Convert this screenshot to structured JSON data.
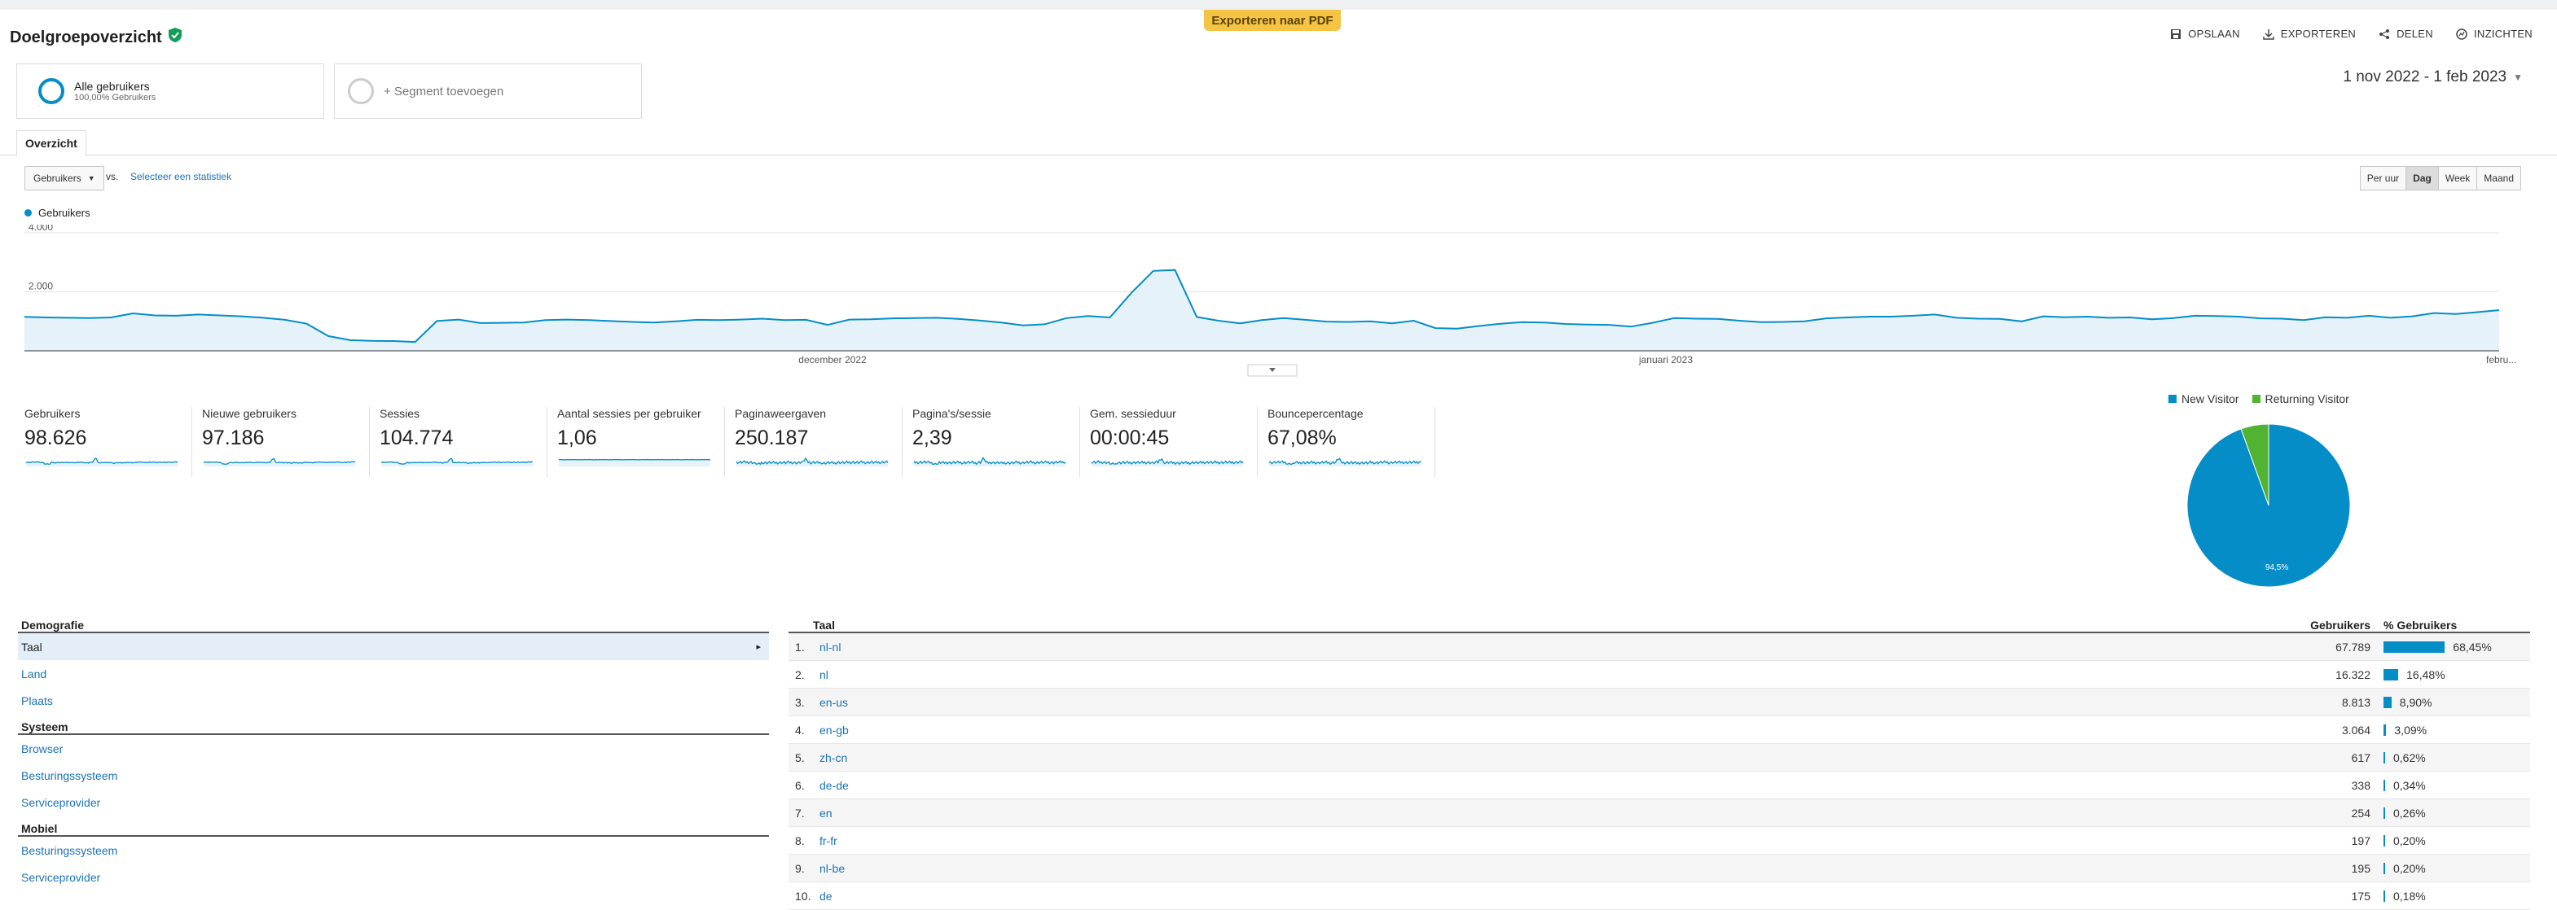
{
  "header": {
    "pdf_label": "Exporteren naar PDF",
    "title": "Doelgroepoverzicht",
    "actions": [
      {
        "icon": "save-icon",
        "label": "OPSLAAN"
      },
      {
        "icon": "download-icon",
        "label": "EXPORTEREN"
      },
      {
        "icon": "share-icon",
        "label": "DELEN"
      },
      {
        "icon": "insights-icon",
        "label": "INZICHTEN"
      }
    ]
  },
  "segments": {
    "active_name": "Alle gebruikers",
    "active_sub": "100,00% Gebruikers",
    "add_label": "+ Segment toevoegen"
  },
  "date_range": "1 nov 2022 - 1 feb 2023",
  "tabs": {
    "overview": "Overzicht"
  },
  "chart_controls": {
    "metric": "Gebruikers",
    "vs": "vs.",
    "select_stat": "Selecteer een statistiek",
    "periods": [
      "Per uur",
      "Dag",
      "Week",
      "Maand"
    ],
    "active_period": "Dag"
  },
  "chart_data": [
    {
      "type": "area",
      "series": [
        {
          "name": "Gebruikers",
          "values": [
            1150,
            1130,
            1120,
            1110,
            1130,
            1270,
            1200,
            1190,
            1230,
            1200,
            1170,
            1120,
            1050,
            920,
            500,
            360,
            340,
            330,
            300,
            1010,
            1060,
            940,
            950,
            960,
            1040,
            1060,
            1040,
            1010,
            980,
            960,
            1000,
            1050,
            1040,
            1060,
            1090,
            1040,
            1050,
            880,
            1060,
            1070,
            1100,
            1110,
            1120,
            1080,
            1030,
            960,
            860,
            900,
            1110,
            1180,
            1130,
            1970,
            2710,
            2740,
            1150,
            1020,
            930,
            1040,
            1110,
            1050,
            990,
            980,
            1000,
            930,
            1020,
            770,
            750,
            840,
            920,
            970,
            960,
            910,
            890,
            880,
            820,
            950,
            1110,
            1090,
            1080,
            1020,
            970,
            980,
            1000,
            1100,
            1130,
            1160,
            1160,
            1190,
            1230,
            1120,
            1090,
            1080,
            1000,
            1170,
            1140,
            1160,
            1120,
            1130,
            1070,
            1110,
            1190,
            1180,
            1160,
            1100,
            1090,
            1040,
            1140,
            1120,
            1190,
            1120,
            1170,
            1280,
            1250,
            1310,
            1380
          ]
        }
      ],
      "x_labels": [
        "december 2022",
        "januari 2023",
        "febru..."
      ],
      "y_ticks": [
        "4.000",
        "2.000"
      ],
      "ylim": [
        0,
        4000
      ],
      "color": "#058dc7"
    },
    {
      "type": "pie",
      "labels": [
        "New Visitor",
        "Returning Visitor"
      ],
      "values": [
        94.5,
        5.5
      ],
      "colors": [
        "#058dc7",
        "#50b432"
      ],
      "slice_label": "94,5%"
    }
  ],
  "summary": [
    {
      "label": "Gebruikers",
      "value": "98.626"
    },
    {
      "label": "Nieuwe gebruikers",
      "value": "97.186"
    },
    {
      "label": "Sessies",
      "value": "104.774"
    },
    {
      "label": "Aantal sessies per gebruiker",
      "value": "1,06"
    },
    {
      "label": "Paginaweergaven",
      "value": "250.187"
    },
    {
      "label": "Pagina's/sessie",
      "value": "2,39"
    },
    {
      "label": "Gem. sessieduur",
      "value": "00:00:45"
    },
    {
      "label": "Bouncepercentage",
      "value": "67,08%"
    }
  ],
  "demographics": {
    "groups": [
      {
        "title": "Demografie",
        "items": [
          "Taal",
          "Land",
          "Plaats"
        ]
      },
      {
        "title": "Systeem",
        "items": [
          "Browser",
          "Besturingssysteem",
          "Serviceprovider"
        ]
      },
      {
        "title": "Mobiel",
        "items": [
          "Besturingssysteem",
          "Serviceprovider"
        ]
      }
    ]
  },
  "table": {
    "headers": {
      "dimension": "Taal",
      "users": "Gebruikers",
      "pct": "% Gebruikers"
    },
    "rows": [
      {
        "rank": "1.",
        "lang": "nl-nl",
        "users": "67.789",
        "pct": "68,45%",
        "share": 0.6845
      },
      {
        "rank": "2.",
        "lang": "nl",
        "users": "16.322",
        "pct": "16,48%",
        "share": 0.1648
      },
      {
        "rank": "3.",
        "lang": "en-us",
        "users": "8.813",
        "pct": "8,90%",
        "share": 0.089
      },
      {
        "rank": "4.",
        "lang": "en-gb",
        "users": "3.064",
        "pct": "3,09%",
        "share": 0.0309
      },
      {
        "rank": "5.",
        "lang": "zh-cn",
        "users": "617",
        "pct": "0,62%",
        "share": 0.0062
      },
      {
        "rank": "6.",
        "lang": "de-de",
        "users": "338",
        "pct": "0,34%",
        "share": 0.0034
      },
      {
        "rank": "7.",
        "lang": "en",
        "users": "254",
        "pct": "0,26%",
        "share": 0.0026
      },
      {
        "rank": "8.",
        "lang": "fr-fr",
        "users": "197",
        "pct": "0,20%",
        "share": 0.002
      },
      {
        "rank": "9.",
        "lang": "nl-be",
        "users": "195",
        "pct": "0,20%",
        "share": 0.002
      },
      {
        "rank": "10.",
        "lang": "de",
        "users": "175",
        "pct": "0,18%",
        "share": 0.0018
      }
    ]
  }
}
